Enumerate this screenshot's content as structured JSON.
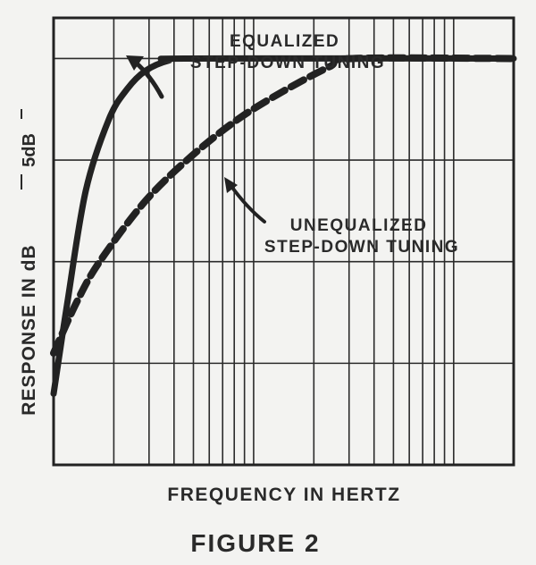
{
  "chart_data": {
    "type": "line",
    "title": "FIGURE 2",
    "xlabel": "FREQUENCY IN HERTZ",
    "ylabel": "RESPONSE IN dB",
    "scale_label": "5dB",
    "x_scale": "log",
    "xlim": [
      0,
      1
    ],
    "ylim": [
      -20,
      2
    ],
    "grid": true,
    "series": [
      {
        "name": "EQUALIZED STEP-DOWN TUNING",
        "style": "solid",
        "x": [
          0,
          0.03,
          0.07,
          0.12,
          0.16,
          0.2,
          0.25,
          0.3,
          1
        ],
        "y": [
          -16.5,
          -12,
          -6.5,
          -3.0,
          -1.5,
          -0.6,
          -0.1,
          0,
          0
        ]
      },
      {
        "name": "UNEQUALIZED STEP-DOWN TUNING",
        "style": "dashed",
        "x": [
          0,
          0.05,
          0.1,
          0.2,
          0.3,
          0.4,
          0.5,
          0.6,
          0.65,
          1
        ],
        "y": [
          -14.5,
          -12,
          -10,
          -7,
          -4.8,
          -3,
          -1.6,
          -0.4,
          0,
          0
        ]
      }
    ],
    "colors": {
      "ink": "#222222",
      "paper": "#f3f3f1"
    }
  }
}
